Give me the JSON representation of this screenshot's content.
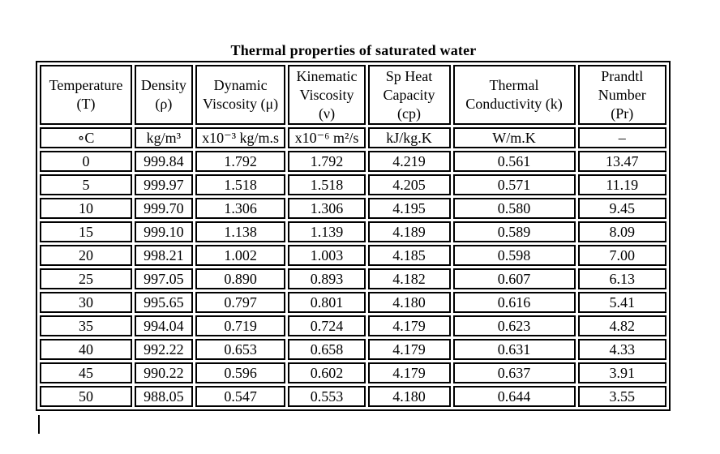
{
  "title": "Thermal properties of saturated water",
  "table": {
    "columns": [
      "temperature",
      "density",
      "dynamic-viscosity",
      "kinematic-viscosity",
      "sp-heat-capacity",
      "thermal-conductivity",
      "prandtl-number"
    ],
    "headers": [
      "Temperature\n(T)",
      "Density\n(ρ)",
      "Dynamic\nViscosity (μ)",
      "Kinematic\nViscosity\n(ν)",
      "Sp Heat\nCapacity\n(cp)",
      "Thermal\nConductivity (k)",
      "Prandtl\nNumber\n(Pr)"
    ],
    "units": [
      "∘C",
      "kg/m³",
      "x10⁻³ kg/m.s",
      "x10⁻⁶ m²/s",
      "kJ/kg.K",
      "W/m.K",
      "–"
    ],
    "rows": [
      [
        "0",
        "999.84",
        "1.792",
        "1.792",
        "4.219",
        "0.561",
        "13.47"
      ],
      [
        "5",
        "999.97",
        "1.518",
        "1.518",
        "4.205",
        "0.571",
        "11.19"
      ],
      [
        "10",
        "999.70",
        "1.306",
        "1.306",
        "4.195",
        "0.580",
        "9.45"
      ],
      [
        "15",
        "999.10",
        "1.138",
        "1.139",
        "4.189",
        "0.589",
        "8.09"
      ],
      [
        "20",
        "998.21",
        "1.002",
        "1.003",
        "4.185",
        "0.598",
        "7.00"
      ],
      [
        "25",
        "997.05",
        "0.890",
        "0.893",
        "4.182",
        "0.607",
        "6.13"
      ],
      [
        "30",
        "995.65",
        "0.797",
        "0.801",
        "4.180",
        "0.616",
        "5.41"
      ],
      [
        "35",
        "994.04",
        "0.719",
        "0.724",
        "4.179",
        "0.623",
        "4.82"
      ],
      [
        "40",
        "992.22",
        "0.653",
        "0.658",
        "4.179",
        "0.631",
        "4.33"
      ],
      [
        "45",
        "990.22",
        "0.596",
        "0.602",
        "4.179",
        "0.637",
        "3.91"
      ],
      [
        "50",
        "988.05",
        "0.547",
        "0.553",
        "4.180",
        "0.644",
        "3.55"
      ]
    ]
  },
  "colors": {
    "text": "#000000",
    "border": "#000000",
    "background": "#ffffff"
  }
}
